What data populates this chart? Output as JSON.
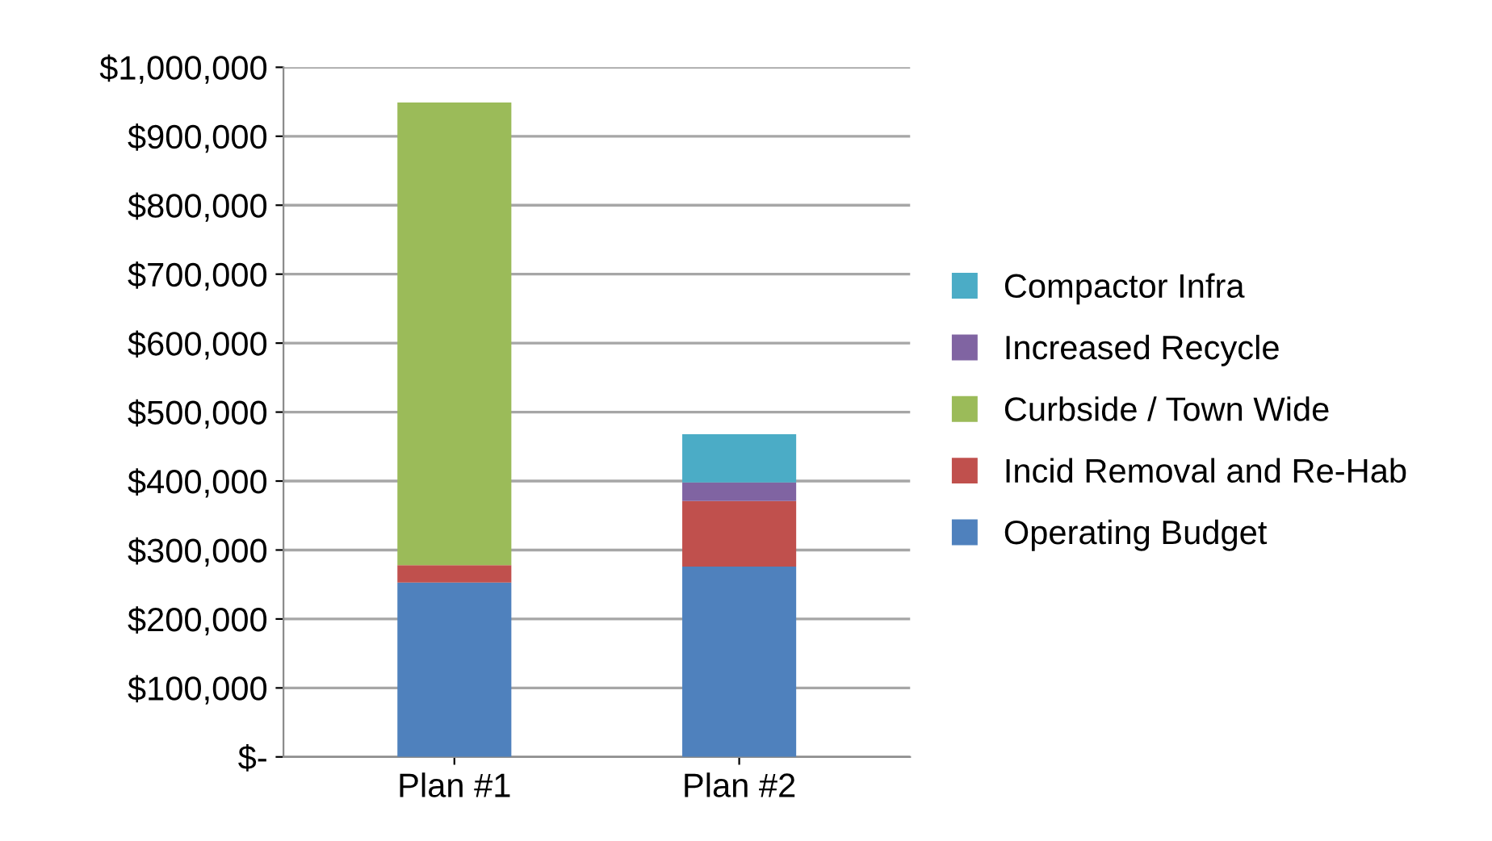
{
  "chart_data": {
    "type": "bar",
    "stacked": true,
    "categories": [
      "Plan #1",
      "Plan #2"
    ],
    "series": [
      {
        "name": "Operating Budget",
        "color": "#4f81bd",
        "values": [
          253000,
          276000
        ]
      },
      {
        "name": "Incid Removal and Re-Hab",
        "color": "#c0504d",
        "values": [
          25000,
          95000
        ]
      },
      {
        "name": "Curbside / Town Wide",
        "color": "#9bbb59",
        "values": [
          671000,
          0
        ]
      },
      {
        "name": "Increased Recycle",
        "color": "#8064a2",
        "values": [
          0,
          27000
        ]
      },
      {
        "name": "Compactor Infra",
        "color": "#4bacc6",
        "values": [
          0,
          70000
        ]
      }
    ],
    "ylim": [
      0,
      1000000
    ],
    "yticks": [
      {
        "value": 0,
        "label": "$-"
      },
      {
        "value": 100000,
        "label": "$100,000"
      },
      {
        "value": 200000,
        "label": "$200,000"
      },
      {
        "value": 300000,
        "label": "$300,000"
      },
      {
        "value": 400000,
        "label": "$400,000"
      },
      {
        "value": 500000,
        "label": "$500,000"
      },
      {
        "value": 600000,
        "label": "$600,000"
      },
      {
        "value": 700000,
        "label": "$700,000"
      },
      {
        "value": 800000,
        "label": "$800,000"
      },
      {
        "value": 900000,
        "label": "$900,000"
      },
      {
        "value": 1000000,
        "label": "$1,000,000"
      }
    ],
    "grid": "y",
    "legend": "right"
  }
}
